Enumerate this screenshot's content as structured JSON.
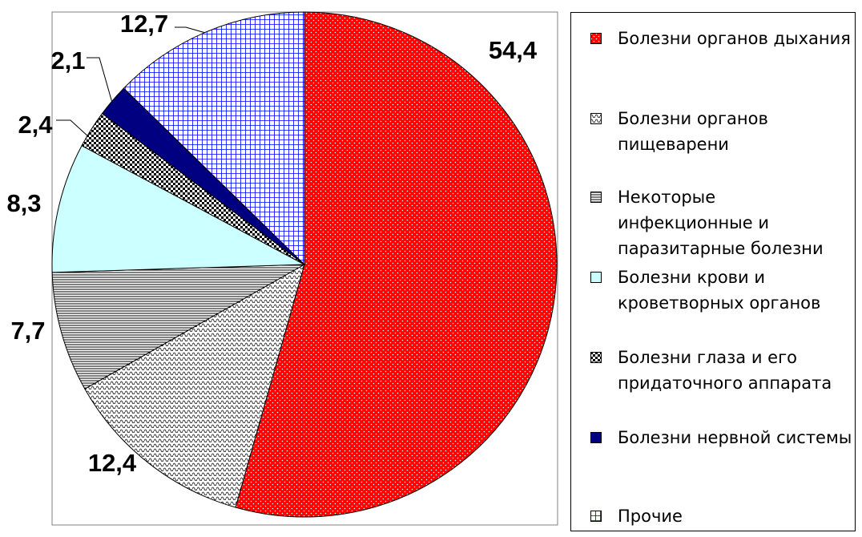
{
  "chart_data": {
    "type": "pie",
    "categories": [
      "Болезни органов дыхания",
      "Болезни органов пищеварени",
      "Некоторые инфекционные и паразитарные болезни",
      "Болезни крови и кроветворных органов",
      "Болезни глаза и его придаточного аппарата",
      "Болезни нервной системы",
      "Прочие"
    ],
    "values": [
      54.4,
      12.4,
      7.7,
      8.3,
      2.4,
      2.1,
      12.7
    ],
    "value_labels": [
      "54,4",
      "12,4",
      "7,7",
      "8,3",
      "2,4",
      "2,1",
      "12,7"
    ],
    "colors": [
      "#ff0000",
      "#ffffff",
      "#ffffff",
      "#ccffff",
      "#ffffff",
      "#000080",
      "#ffffff"
    ],
    "legend": "right"
  }
}
